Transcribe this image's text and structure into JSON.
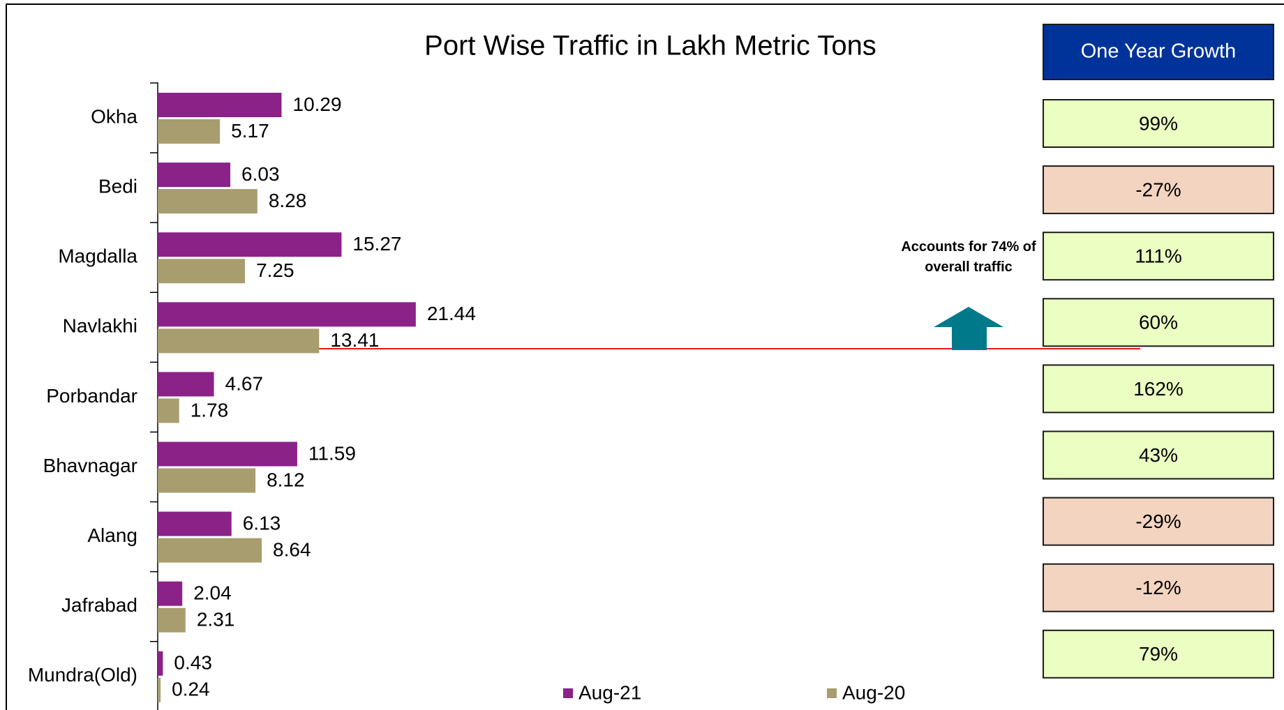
{
  "chart_data": {
    "type": "hbar",
    "title": "Port Wise Traffic in Lakh Metric Tons",
    "categories": [
      "Okha",
      "Bedi",
      "Magdalla",
      "Navlakhi",
      "Porbandar",
      "Bhavnagar",
      "Alang",
      "Jafrabad",
      "Mundra(Old)"
    ],
    "series": [
      {
        "name": "Aug-21",
        "color": "#8b2288",
        "values": [
          10.29,
          6.03,
          15.27,
          21.44,
          4.67,
          11.59,
          6.13,
          2.04,
          0.43
        ]
      },
      {
        "name": "Aug-20",
        "color": "#a89d6e",
        "values": [
          5.17,
          8.28,
          7.25,
          13.41,
          1.78,
          8.12,
          8.64,
          2.31,
          0.24
        ]
      }
    ],
    "xlim": [
      0,
      72
    ],
    "annotation": "Accounts for 74% of overall traffic"
  },
  "growth": {
    "title": "One Year Growth",
    "values": [
      99,
      -27,
      111,
      60,
      162,
      43,
      -29,
      -12,
      79
    ],
    "value_labels": [
      "99%",
      "-27%",
      "111%",
      "60%",
      "162%",
      "43%",
      "-29%",
      "-12%",
      "79%"
    ]
  }
}
